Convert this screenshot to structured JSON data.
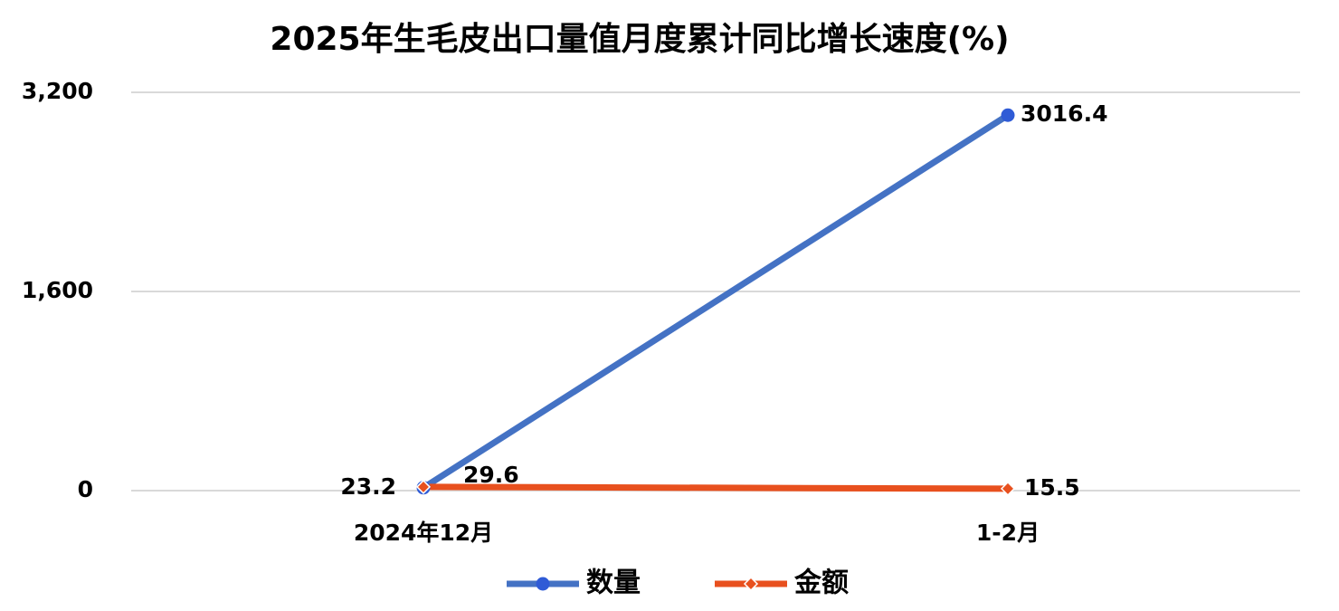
{
  "chart_data": {
    "type": "line",
    "title": "2025年生毛皮出口量值月度累计同比增长速度(%)",
    "categories": [
      "2024年12月",
      "1-2月"
    ],
    "series": [
      {
        "name": "数量",
        "color": "#4472c4",
        "marker_color": "#2f5bd6",
        "marker": "circle",
        "values": [
          23.2,
          3016.4
        ]
      },
      {
        "name": "金额",
        "color": "#e8501e",
        "marker_color": "#e8501e",
        "marker": "diamond",
        "values": [
          29.6,
          15.5
        ]
      }
    ],
    "ylim": [
      0,
      3200
    ],
    "yticks": [
      0,
      {
        "value": 1600,
        "label": "1,600"
      },
      {
        "value": 3200,
        "label": "3,200"
      }
    ],
    "grid": true,
    "legend": "bottom"
  }
}
